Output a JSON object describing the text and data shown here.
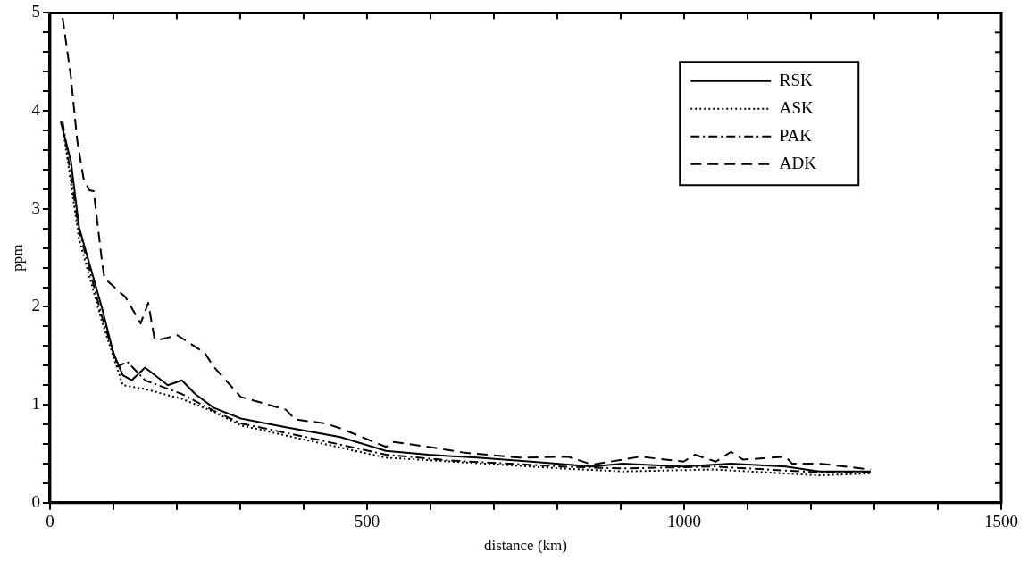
{
  "chart_data": {
    "type": "line",
    "xlabel": "distance (km)",
    "ylabel": "ppm",
    "xlim": [
      0,
      1500
    ],
    "ylim": [
      0,
      5
    ],
    "xticks": [
      0,
      {
        "value": 100,
        "label": null
      },
      {
        "value": 200,
        "label": null
      },
      {
        "value": 300,
        "label": null
      },
      {
        "value": 400,
        "label": null
      },
      500,
      {
        "value": 600,
        "label": null
      },
      {
        "value": 700,
        "label": null
      },
      {
        "value": 800,
        "label": null
      },
      {
        "value": 900,
        "label": null
      },
      1000,
      {
        "value": 1100,
        "label": null
      },
      {
        "value": 1200,
        "label": null
      },
      {
        "value": 1300,
        "label": null
      },
      {
        "value": 1400,
        "label": null
      },
      1500
    ],
    "yticks": [
      0,
      {
        "value": 0.2,
        "label": null
      },
      {
        "value": 0.4,
        "label": null
      },
      {
        "value": 0.6,
        "label": null
      },
      {
        "value": 0.8,
        "label": null
      },
      1,
      {
        "value": 1.2,
        "label": null
      },
      {
        "value": 1.4,
        "label": null
      },
      {
        "value": 1.6,
        "label": null
      },
      {
        "value": 1.8,
        "label": null
      },
      2,
      {
        "value": 2.2,
        "label": null
      },
      {
        "value": 2.4,
        "label": null
      },
      {
        "value": 2.6,
        "label": null
      },
      {
        "value": 2.8,
        "label": null
      },
      3,
      {
        "value": 3.2,
        "label": null
      },
      {
        "value": 3.4,
        "label": null
      },
      {
        "value": 3.6,
        "label": null
      },
      {
        "value": 3.8,
        "label": null
      },
      4,
      {
        "value": 4.2,
        "label": null
      },
      {
        "value": 4.4,
        "label": null
      },
      {
        "value": 4.6,
        "label": null
      },
      {
        "value": 4.8,
        "label": null
      },
      5
    ],
    "grid": false,
    "legend": "top right",
    "marker": "none",
    "series": [
      {
        "name": "RSK",
        "color": "#000000",
        "line_style": "solid",
        "x": [
          17,
          33,
          46,
          57,
          82,
          100,
          115,
          129,
          150,
          186,
          208,
          229,
          258,
          301,
          372,
          458,
          530,
          597,
          673,
          759,
          855,
          903,
          999,
          1074,
          1160,
          1213,
          1294
        ],
        "values": [
          3.89,
          3.49,
          2.81,
          2.56,
          1.99,
          1.53,
          1.3,
          1.25,
          1.38,
          1.2,
          1.25,
          1.11,
          0.97,
          0.86,
          0.77,
          0.67,
          0.53,
          0.49,
          0.46,
          0.42,
          0.37,
          0.4,
          0.37,
          0.4,
          0.37,
          0.32,
          0.32
        ]
      },
      {
        "name": "ASK",
        "color": "#000000",
        "line_style": "dotted",
        "x": [
          20,
          46,
          82,
          115,
          150,
          208,
          258,
          301,
          397,
          530,
          635,
          807,
          903,
          1046,
          1213,
          1294
        ],
        "values": [
          3.84,
          2.69,
          1.85,
          1.2,
          1.16,
          1.06,
          0.93,
          0.79,
          0.65,
          0.46,
          0.42,
          0.35,
          0.32,
          0.34,
          0.28,
          0.3
        ]
      },
      {
        "name": "PAK",
        "color": "#000000",
        "line_style": "dashdot",
        "x": [
          20,
          46,
          82,
          107,
          122,
          150,
          208,
          258,
          301,
          397,
          530,
          635,
          807,
          903,
          1046,
          1213,
          1294
        ],
        "values": [
          3.89,
          2.78,
          1.9,
          1.39,
          1.44,
          1.25,
          1.11,
          0.94,
          0.81,
          0.68,
          0.49,
          0.43,
          0.37,
          0.35,
          0.37,
          0.31,
          0.31
        ]
      },
      {
        "name": "ADK",
        "color": "#000000",
        "line_style": "dashed",
        "x": [
          20,
          33,
          43,
          53,
          62,
          69,
          82,
          86,
          119,
          143,
          155,
          165,
          176,
          201,
          244,
          258,
          301,
          372,
          387,
          434,
          458,
          530,
          542,
          597,
          655,
          741,
          817,
          855,
          903,
          931,
          999,
          1017,
          1050,
          1074,
          1093,
          1160,
          1170,
          1213,
          1294
        ],
        "values": [
          4.95,
          4.35,
          3.7,
          3.31,
          3.19,
          3.18,
          2.47,
          2.29,
          2.1,
          1.83,
          2.04,
          1.67,
          1.67,
          1.71,
          1.53,
          1.39,
          1.08,
          0.95,
          0.85,
          0.81,
          0.76,
          0.57,
          0.62,
          0.57,
          0.51,
          0.46,
          0.47,
          0.39,
          0.44,
          0.47,
          0.42,
          0.49,
          0.42,
          0.52,
          0.44,
          0.47,
          0.4,
          0.4,
          0.34
        ]
      }
    ]
  }
}
